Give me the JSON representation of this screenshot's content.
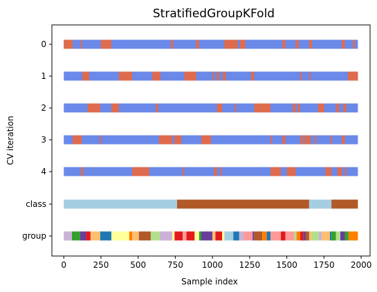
{
  "chart_data": {
    "type": "bar",
    "title": "StratifiedGroupKFold",
    "xlabel": "Sample index",
    "ylabel": "CV iteration",
    "xlim": [
      -80,
      2060
    ],
    "xticks": [
      0,
      250,
      500,
      750,
      1000,
      1250,
      1500,
      1750,
      2000
    ],
    "n_samples": 1978,
    "row_labels": [
      "0",
      "1",
      "2",
      "3",
      "4",
      "class",
      "group"
    ],
    "colors": {
      "train": "#6a89e8",
      "test": "#df6b4e"
    },
    "cv_iterations": [
      {
        "name": "0",
        "test_ranges": [
          [
            0,
            60
          ],
          [
            115,
            125
          ],
          [
            250,
            320
          ],
          [
            720,
            735
          ],
          [
            890,
            910
          ],
          [
            1080,
            1170
          ],
          [
            1185,
            1220
          ],
          [
            1470,
            1490
          ],
          [
            1560,
            1580
          ],
          [
            1650,
            1670
          ],
          [
            1870,
            1890
          ],
          [
            1945,
            1958
          ]
        ]
      },
      {
        "name": "1",
        "test_ranges": [
          [
            125,
            170
          ],
          [
            370,
            460
          ],
          [
            595,
            650
          ],
          [
            810,
            890
          ],
          [
            1000,
            1010
          ],
          [
            1030,
            1045
          ],
          [
            1070,
            1090
          ],
          [
            1260,
            1280
          ],
          [
            1590,
            1600
          ],
          [
            1650,
            1660
          ],
          [
            1910,
            1978
          ]
        ]
      },
      {
        "name": "2",
        "test_ranges": [
          [
            160,
            245
          ],
          [
            320,
            370
          ],
          [
            620,
            635
          ],
          [
            1030,
            1065
          ],
          [
            1150,
            1160
          ],
          [
            1280,
            1390
          ],
          [
            1540,
            1560
          ],
          [
            1575,
            1590
          ],
          [
            1710,
            1750
          ],
          [
            1830,
            1850
          ],
          [
            1880,
            1900
          ]
        ]
      },
      {
        "name": "3",
        "test_ranges": [
          [
            60,
            120
          ],
          [
            240,
            250
          ],
          [
            640,
            730
          ],
          [
            745,
            790
          ],
          [
            925,
            990
          ],
          [
            1390,
            1400
          ],
          [
            1470,
            1490
          ],
          [
            1590,
            1610
          ],
          [
            1620,
            1660
          ],
          [
            1690,
            1700
          ],
          [
            1790,
            1800
          ],
          [
            1870,
            1890
          ]
        ]
      },
      {
        "name": "4",
        "test_ranges": [
          [
            115,
            130
          ],
          [
            460,
            575
          ],
          [
            800,
            810
          ],
          [
            1010,
            1030
          ],
          [
            1050,
            1060
          ],
          [
            1390,
            1460
          ],
          [
            1500,
            1560
          ],
          [
            1760,
            1800
          ],
          [
            1840,
            1870
          ],
          [
            1890,
            1900
          ]
        ]
      }
    ],
    "class_segments": [
      {
        "start": 0,
        "end": 762,
        "color": "#a6cee3"
      },
      {
        "start": 762,
        "end": 1650,
        "color": "#b15928"
      },
      {
        "start": 1650,
        "end": 1800,
        "color": "#a6cee3"
      },
      {
        "start": 1800,
        "end": 1978,
        "color": "#b15928"
      }
    ],
    "group_segments": [
      {
        "start": 0,
        "end": 55,
        "color": "#cab2d6"
      },
      {
        "start": 55,
        "end": 110,
        "color": "#33a02c"
      },
      {
        "start": 110,
        "end": 150,
        "color": "#6a3d9a"
      },
      {
        "start": 150,
        "end": 180,
        "color": "#e31a1c"
      },
      {
        "start": 180,
        "end": 245,
        "color": "#fdbf6f"
      },
      {
        "start": 245,
        "end": 320,
        "color": "#1f78b4"
      },
      {
        "start": 320,
        "end": 440,
        "color": "#ffff99"
      },
      {
        "start": 440,
        "end": 460,
        "color": "#ff7f00"
      },
      {
        "start": 460,
        "end": 505,
        "color": "#fdbf6f"
      },
      {
        "start": 505,
        "end": 585,
        "color": "#b15928"
      },
      {
        "start": 585,
        "end": 645,
        "color": "#b2df8a"
      },
      {
        "start": 645,
        "end": 730,
        "color": "#cab2d6"
      },
      {
        "start": 730,
        "end": 745,
        "color": "#ffff99"
      },
      {
        "start": 745,
        "end": 800,
        "color": "#e31a1c"
      },
      {
        "start": 800,
        "end": 825,
        "color": "#fb9a99"
      },
      {
        "start": 825,
        "end": 880,
        "color": "#e31a1c"
      },
      {
        "start": 880,
        "end": 910,
        "color": "#ffff99"
      },
      {
        "start": 910,
        "end": 925,
        "color": "#33a02c"
      },
      {
        "start": 925,
        "end": 1000,
        "color": "#6a3d9a"
      },
      {
        "start": 1000,
        "end": 1020,
        "color": "#fdbf6f"
      },
      {
        "start": 1020,
        "end": 1065,
        "color": "#e31a1c"
      },
      {
        "start": 1065,
        "end": 1080,
        "color": "#ffff99"
      },
      {
        "start": 1080,
        "end": 1140,
        "color": "#a6cee3"
      },
      {
        "start": 1140,
        "end": 1180,
        "color": "#1f78b4"
      },
      {
        "start": 1180,
        "end": 1210,
        "color": "#cab2d6"
      },
      {
        "start": 1210,
        "end": 1270,
        "color": "#fb9a99"
      },
      {
        "start": 1270,
        "end": 1280,
        "color": "#6a3d9a"
      },
      {
        "start": 1280,
        "end": 1335,
        "color": "#b15928"
      },
      {
        "start": 1335,
        "end": 1365,
        "color": "#ff7f00"
      },
      {
        "start": 1365,
        "end": 1390,
        "color": "#1f78b4"
      },
      {
        "start": 1390,
        "end": 1460,
        "color": "#fb9a99"
      },
      {
        "start": 1460,
        "end": 1490,
        "color": "#e31a1c"
      },
      {
        "start": 1490,
        "end": 1550,
        "color": "#fb9a99"
      },
      {
        "start": 1550,
        "end": 1565,
        "color": "#b2df8a"
      },
      {
        "start": 1565,
        "end": 1590,
        "color": "#ff7f00"
      },
      {
        "start": 1590,
        "end": 1610,
        "color": "#e31a1c"
      },
      {
        "start": 1610,
        "end": 1625,
        "color": "#6a3d9a"
      },
      {
        "start": 1625,
        "end": 1650,
        "color": "#b15928"
      },
      {
        "start": 1650,
        "end": 1665,
        "color": "#fdbf6f"
      },
      {
        "start": 1665,
        "end": 1715,
        "color": "#b2df8a"
      },
      {
        "start": 1715,
        "end": 1735,
        "color": "#cab2d6"
      },
      {
        "start": 1735,
        "end": 1790,
        "color": "#fdbf6f"
      },
      {
        "start": 1790,
        "end": 1800,
        "color": "#1f78b4"
      },
      {
        "start": 1800,
        "end": 1830,
        "color": "#33a02c"
      },
      {
        "start": 1830,
        "end": 1860,
        "color": "#b2df8a"
      },
      {
        "start": 1860,
        "end": 1890,
        "color": "#6a3d9a"
      },
      {
        "start": 1890,
        "end": 1915,
        "color": "#33a02c"
      },
      {
        "start": 1915,
        "end": 1978,
        "color": "#ff7f00"
      }
    ]
  }
}
